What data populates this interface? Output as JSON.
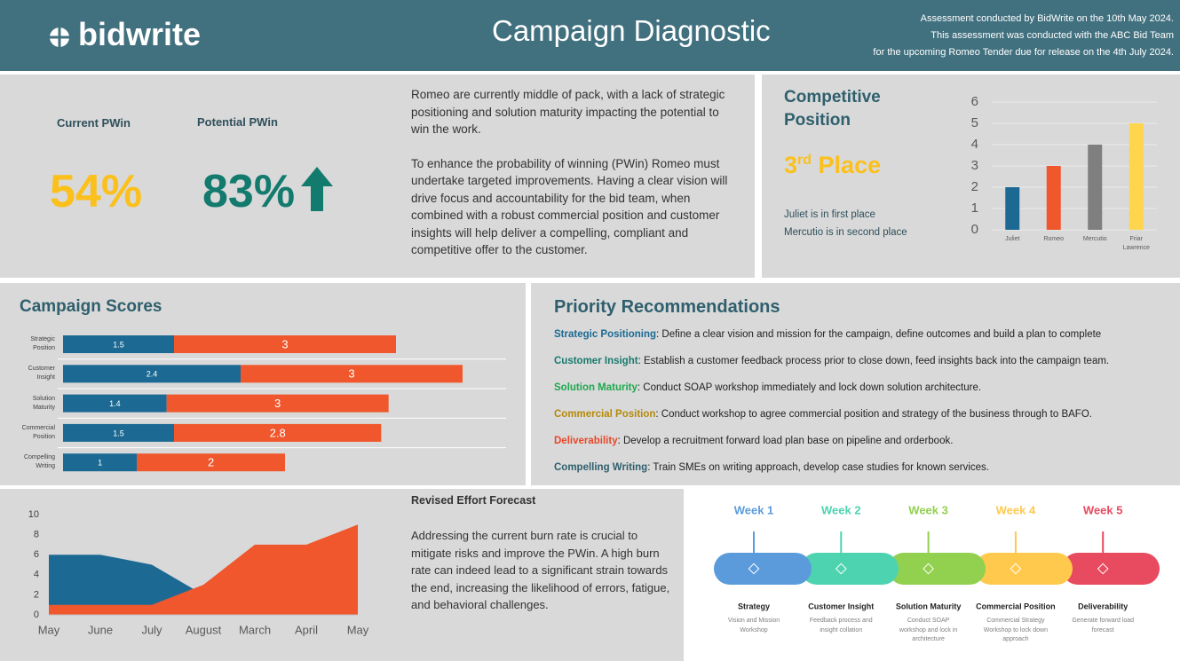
{
  "header": {
    "logo": "bidwrite",
    "title": "Campaign Diagnostic",
    "lines": [
      "Assessment conducted by BidWrite on the 10th May 2024.",
      "This assessment was conducted with the ABC Bid Team",
      "for the upcoming Romeo Tender due for release on the 4th July 2024."
    ]
  },
  "pwin": {
    "current_label": "Current PWin",
    "current": "54%",
    "potential_label": "Potential PWin",
    "potential": "83%"
  },
  "summary": [
    "Romeo are currently middle of pack, with a lack of strategic positioning and solution maturity impacting the potential to win the work.",
    "To enhance the probability of winning (PWin) Romeo must undertake targeted improvements. Having a clear vision will drive focus and accountability for the bid team, when combined with a robust commercial position and customer insights will help deliver a compelling, compliant and competitive offer to the customer."
  ],
  "competitive": {
    "title": "Competitive Position",
    "place": "3",
    "place_suffix": "rd",
    "place_word": "Place",
    "notes": [
      "Juliet is in first place",
      "Mercutio is in second place"
    ]
  },
  "chart_data": [
    {
      "type": "bar",
      "categories": [
        "Juliet",
        "Romeo",
        "Mercutio",
        "Friar Lawrence"
      ],
      "values": [
        2,
        3,
        4,
        5
      ],
      "colors": [
        "#1c6a93",
        "#f0572c",
        "#7f7f7f",
        "#ffd54d"
      ],
      "ylim": [
        0,
        6
      ],
      "yticks": [
        0,
        1,
        2,
        3,
        4,
        5,
        6
      ],
      "grid": true
    },
    {
      "type": "hbar-stacked",
      "title": "Campaign Scores",
      "categories": [
        "Strategic Position",
        "Customer Insight",
        "Solution Maturity",
        "Commercial Position",
        "Compelling Writing"
      ],
      "series": [
        {
          "color": "#1c6a93",
          "values": [
            1.5,
            2.4,
            1.4,
            1.5,
            1
          ]
        },
        {
          "color": "#f0572c",
          "values": [
            3,
            3,
            3,
            2.8,
            2
          ]
        }
      ],
      "xlim": [
        0,
        6
      ]
    },
    {
      "type": "area",
      "categories": [
        "May",
        "June",
        "July",
        "August",
        "March",
        "April",
        "May"
      ],
      "series": [
        {
          "color": "#1c6a93",
          "values": [
            6,
            6,
            5,
            2,
            0,
            0,
            0
          ]
        },
        {
          "color": "#f0572c",
          "values": [
            1,
            1,
            1,
            3,
            7,
            7,
            9
          ]
        }
      ],
      "ylim": [
        0,
        10
      ],
      "yticks": [
        0,
        2,
        4,
        6,
        8,
        10
      ]
    }
  ],
  "recommendations": {
    "title": "Priority Recommendations",
    "items": [
      {
        "label": "Strategic Positioning",
        "color": "#1c6a93",
        "text": ": Define a clear vision and mission for the campaign, define outcomes and build a plan to complete"
      },
      {
        "label": "Customer Insight",
        "color": "#177a6c",
        "text": ": Establish a customer feedback process prior to close down, feed insights back into the campaign team."
      },
      {
        "label": "Solution Maturity",
        "color": "#1fa84f",
        "text": ": Conduct SOAP workshop immediately and lock down solution architecture."
      },
      {
        "label": "Commercial Position",
        "color": "#b58a0a",
        "text": ": Conduct workshop to agree commercial position and strategy of the business through to BAFO."
      },
      {
        "label": "Deliverability",
        "color": "#e8472a",
        "text": ": Develop a recruitment forward load plan base on pipeline and orderbook."
      },
      {
        "label": "Compelling Writing",
        "color": "#2f5f6d",
        "text": ": Train SMEs on writing approach, develop case studies for known services."
      }
    ]
  },
  "effort": {
    "title": "Revised Effort Forecast",
    "text": "Addressing the current burn rate is crucial to mitigate risks and improve the PWin. A high burn rate can indeed lead to a significant strain towards the end, increasing the likelihood of errors, fatigue, and behavioral challenges."
  },
  "timeline": [
    {
      "week": "Week 1",
      "color": "#5b9bdc",
      "title": "Strategy",
      "desc": "Vision and Mission Workshop"
    },
    {
      "week": "Week 2",
      "color": "#4ed3b0",
      "title": "Customer Insight",
      "desc": "Feedback process and insight collation"
    },
    {
      "week": "Week 3",
      "color": "#92d050",
      "title": "Solution Maturity",
      "desc": "Conduct SOAP workshop and lock in architecture"
    },
    {
      "week": "Week 4",
      "color": "#ffc94d",
      "title": "Commercial Position",
      "desc": "Commercial Strategy Workshop to lock down approach"
    },
    {
      "week": "Week 5",
      "color": "#e84a5f",
      "title": "Deliverability",
      "desc": "Generate forward load forecast"
    }
  ]
}
